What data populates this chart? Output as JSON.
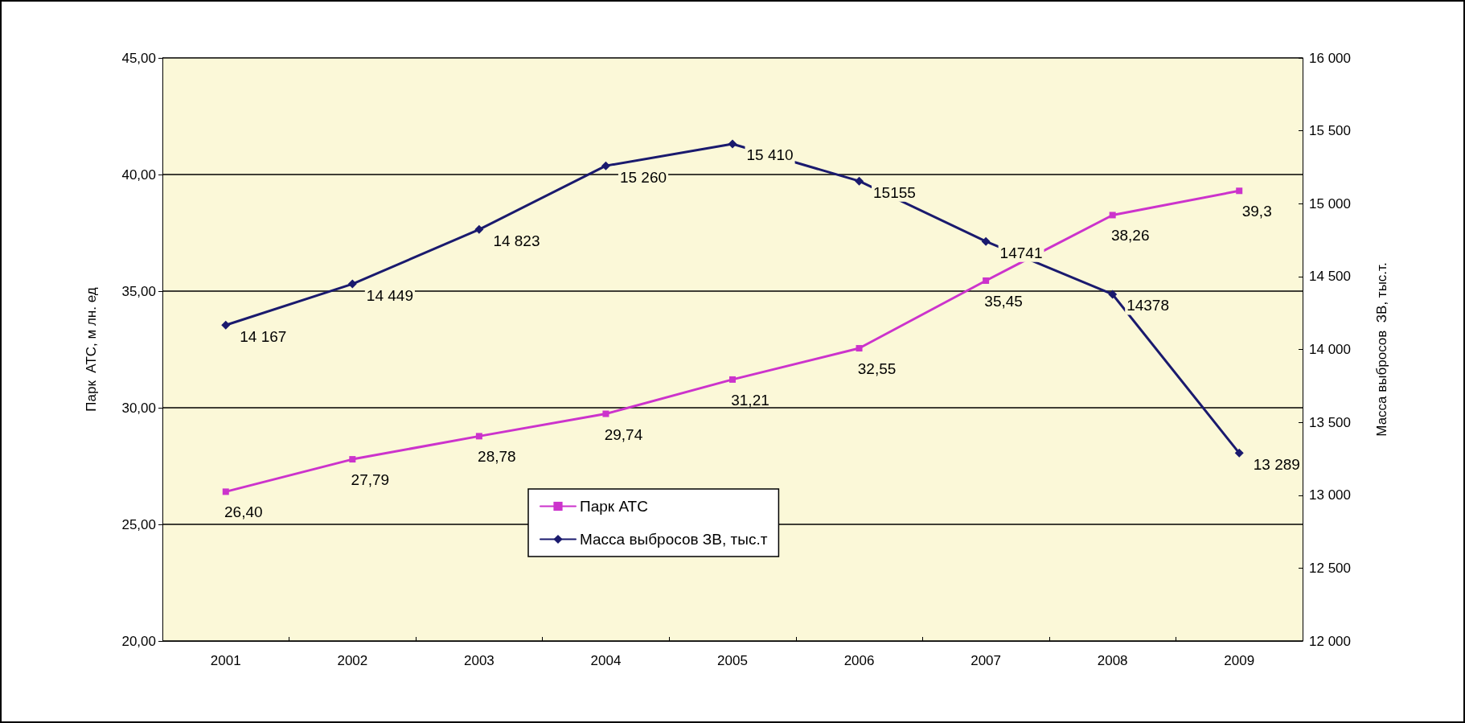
{
  "chart_data": {
    "type": "line",
    "ylabel": "Парк  АТС, м лн. ед",
    "y2label": "Масса выбросов  ЗВ, тыс.т.",
    "categories": [
      "2001",
      "2002",
      "2003",
      "2004",
      "2005",
      "2006",
      "2007",
      "2008",
      "2009"
    ],
    "series": [
      {
        "name": "Парк АТС",
        "color": "#cc33cc",
        "marker": "square",
        "values": [
          26.4,
          27.79,
          28.78,
          29.74,
          31.21,
          32.55,
          35.45,
          38.26,
          39.3
        ],
        "value_labels": [
          "26,40",
          "27,79",
          "28,78",
          "29,74",
          "31,21",
          "32,55",
          "35,45",
          "38,26",
          "39,3"
        ]
      },
      {
        "name": "Масса выбросов ЗВ, тыс.т",
        "color": "#1a1a6e",
        "marker": "diamond",
        "axis": "y2",
        "values": [
          14167,
          14449,
          14823,
          15260,
          15410,
          15155,
          14741,
          14378,
          13289
        ],
        "value_labels": [
          "14 167",
          "14 449",
          "14 823",
          "15 260",
          "15 410",
          "15155",
          "14741",
          "14378",
          "13 289"
        ]
      }
    ],
    "ylim": [
      20,
      45
    ],
    "yticks": [
      {
        "value": 20,
        "label": "20,00"
      },
      {
        "value": 25,
        "label": "25,00"
      },
      {
        "value": 30,
        "label": "30,00"
      },
      {
        "value": 35,
        "label": "35,00"
      },
      {
        "value": 40,
        "label": "40,00"
      },
      {
        "value": 45,
        "label": "45,00"
      }
    ],
    "y2lim": [
      12000,
      16000
    ],
    "y2ticks": [
      {
        "value": 12000,
        "label": "12 000"
      },
      {
        "value": 12500,
        "label": "12 500"
      },
      {
        "value": 13000,
        "label": "13 000"
      },
      {
        "value": 13500,
        "label": "13 500"
      },
      {
        "value": 14000,
        "label": "14 000"
      },
      {
        "value": 14500,
        "label": "14 500"
      },
      {
        "value": 15000,
        "label": "15 000"
      },
      {
        "value": 15500,
        "label": "15 500"
      },
      {
        "value": 16000,
        "label": "16 000"
      }
    ],
    "grid": "y",
    "legend": "bottom",
    "line_style": "solid"
  }
}
